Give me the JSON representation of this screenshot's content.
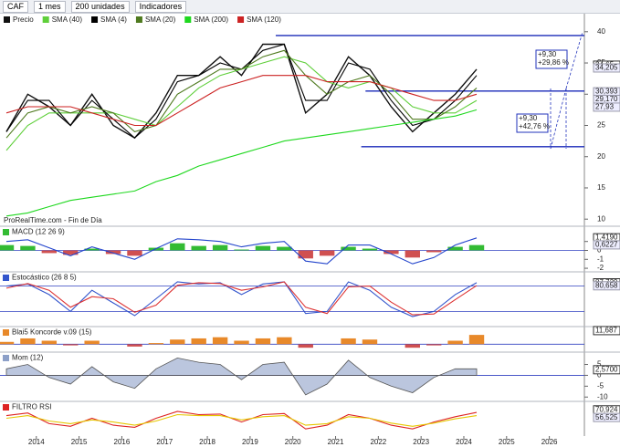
{
  "toolbar": {
    "symbol": "CAF",
    "period": "1 mes",
    "units": "200 unidades",
    "indicators": "Indicadores"
  },
  "source": "ProRealTime.com - Fin de Día",
  "chart_data": [
    {
      "type": "line",
      "x": [
        2013.3,
        2013.8,
        2014.3,
        2014.8,
        2015.3,
        2015.8,
        2016.3,
        2016.8,
        2017.3,
        2017.8,
        2018.3,
        2018.8,
        2019.3,
        2019.8,
        2020.3,
        2020.8,
        2021.3,
        2021.8,
        2022.3,
        2022.8,
        2023.3,
        2023.8,
        2024.3
      ],
      "xlim": [
        2013.15,
        2026.82
      ],
      "xticks": [
        2014,
        2015,
        2016,
        2017,
        2018,
        2019,
        2020,
        2021,
        2022,
        2023,
        2024,
        2025,
        2026
      ],
      "ylim": [
        9.3,
        42.6
      ],
      "yticks": [
        10,
        15,
        20,
        25,
        30,
        35,
        40
      ],
      "series": [
        {
          "name": "Precio",
          "color": "#111111",
          "values": [
            24,
            30,
            28,
            25,
            30,
            25,
            23,
            27,
            33,
            33,
            36,
            33,
            38,
            38,
            27,
            30,
            36,
            33,
            28,
            24,
            27,
            30,
            34
          ]
        },
        {
          "name": "SMA (40)",
          "color": "#5fcf3a",
          "values": [
            21,
            25,
            27,
            27,
            27,
            27,
            26,
            25,
            28,
            31,
            33,
            34,
            35,
            36,
            35,
            32,
            31,
            32,
            31,
            28,
            27,
            27,
            29
          ]
        },
        {
          "name": "SMA (4)",
          "color": "#000000",
          "values": [
            24,
            29,
            29,
            25,
            29,
            26,
            23,
            26,
            32,
            33,
            35,
            34,
            37,
            38,
            29,
            29,
            35,
            34,
            29,
            25,
            26,
            29,
            33
          ]
        },
        {
          "name": "SMA (20)",
          "color": "#4f7a1f",
          "values": [
            23,
            27,
            28,
            27,
            28,
            27,
            24,
            25,
            30,
            32,
            34,
            34,
            36,
            37,
            33,
            30,
            32,
            33,
            30,
            26,
            26,
            28,
            31
          ]
        },
        {
          "name": "SMA (200)",
          "color": "#1ed81e",
          "values": [
            10.5,
            11,
            12,
            13,
            13.5,
            14,
            14.5,
            16,
            17,
            18.5,
            19.5,
            20.5,
            21.5,
            22.5,
            23,
            23.5,
            24,
            24.5,
            25,
            25.5,
            26,
            26.5,
            27.5
          ]
        },
        {
          "name": "SMA (120)",
          "color": "#cc2222",
          "values": [
            27,
            28,
            28,
            28,
            27,
            26,
            25,
            25,
            27,
            29,
            31,
            32,
            33,
            33,
            33,
            32,
            32,
            32,
            31,
            30,
            29,
            29,
            30
          ]
        }
      ],
      "levels": [
        {
          "value": 39.4,
          "from": 2019.6
        },
        {
          "value": 30.5,
          "from": 2021.7
        },
        {
          "value": 21.6,
          "from": 2021.6
        }
      ],
      "annotations": [
        "+9,30",
        "+29,86 %",
        "+9,30",
        "+42,76 %"
      ],
      "right_labels": [
        {
          "value": 34.65,
          "label": "34,65"
        },
        {
          "value": 34.205,
          "label": "34,205"
        },
        {
          "value": 30.393,
          "label": "30,393"
        },
        {
          "value": 29.17,
          "label": "29,170"
        },
        {
          "value": 27.93,
          "label": "27,93"
        }
      ]
    },
    {
      "type": "bar",
      "title": "MACD (12 26 9)",
      "x": [
        2013.3,
        2013.8,
        2014.3,
        2014.8,
        2015.3,
        2015.8,
        2016.3,
        2016.8,
        2017.3,
        2017.8,
        2018.3,
        2018.8,
        2019.3,
        2019.8,
        2020.3,
        2020.8,
        2021.3,
        2021.8,
        2022.3,
        2022.8,
        2023.3,
        2023.8,
        2024.3
      ],
      "ylim": [
        -2.3,
        2.3
      ],
      "yticks": [
        -2,
        -1,
        0,
        1
      ],
      "ref_lines": [
        0
      ],
      "series": [
        {
          "type": "bar",
          "color": "#33bb33",
          "values": [
            0.6,
            0.5,
            -0.3,
            -0.5,
            0.2,
            -0.4,
            -0.6,
            0.3,
            0.8,
            0.5,
            0.6,
            0.1,
            0.5,
            0.4,
            -0.9,
            -0.6,
            0.4,
            0.2,
            -0.4,
            -0.8,
            -0.2,
            0.4,
            0.6
          ]
        },
        {
          "type": "line",
          "color": "#2244cc",
          "values": [
            1.0,
            1.2,
            0.3,
            -0.6,
            0.4,
            -0.3,
            -1.0,
            0.2,
            1.3,
            1.2,
            1.0,
            0.4,
            0.8,
            1.0,
            -1.2,
            -1.5,
            0.6,
            0.6,
            -0.4,
            -1.5,
            -0.8,
            0.6,
            1.4
          ]
        }
      ],
      "right_labels": [
        {
          "value": 1.419,
          "label": "1,4190"
        },
        {
          "value": 0.6227,
          "label": "0,6227"
        }
      ]
    },
    {
      "type": "line",
      "title": "Estocástico (26 8 5)",
      "x": [
        2013.3,
        2013.8,
        2014.3,
        2014.8,
        2015.3,
        2015.8,
        2016.3,
        2016.8,
        2017.3,
        2017.8,
        2018.3,
        2018.8,
        2019.3,
        2019.8,
        2020.3,
        2020.8,
        2021.3,
        2021.8,
        2022.3,
        2022.8,
        2023.3,
        2023.8,
        2024.3
      ],
      "ylim": [
        -5,
        105
      ],
      "ref_lines": [
        20,
        80
      ],
      "series": [
        {
          "type": "line",
          "color": "#3355cc",
          "values": [
            80,
            85,
            60,
            20,
            70,
            40,
            10,
            50,
            90,
            85,
            88,
            60,
            85,
            90,
            15,
            20,
            90,
            70,
            30,
            8,
            20,
            60,
            88
          ]
        },
        {
          "type": "line",
          "color": "#dd3333",
          "values": [
            75,
            86,
            70,
            30,
            55,
            50,
            18,
            35,
            82,
            88,
            86,
            70,
            78,
            90,
            30,
            15,
            78,
            80,
            42,
            12,
            14,
            48,
            81
          ]
        }
      ],
      "right_labels": [
        {
          "value": 87.729,
          "label": "87,729"
        },
        {
          "value": 80.658,
          "label": "80,658"
        }
      ]
    },
    {
      "type": "bar",
      "title": "Blai5 Koncorde v.09 (15)",
      "x": [
        2013.3,
        2013.8,
        2014.3,
        2014.8,
        2015.3,
        2015.8,
        2016.3,
        2016.8,
        2017.3,
        2017.8,
        2018.3,
        2018.8,
        2019.3,
        2019.8,
        2020.3,
        2020.8,
        2021.3,
        2021.8,
        2022.3,
        2022.8,
        2023.3,
        2023.8,
        2024.3
      ],
      "ylim": [
        -6,
        12
      ],
      "ref_lines": [
        0
      ],
      "series": [
        {
          "type": "bar",
          "color": "#e8892a",
          "values": [
            2,
            5,
            3,
            -1,
            3,
            0,
            -2,
            1,
            4,
            5,
            6,
            3,
            5,
            6,
            -3,
            0,
            5,
            4,
            0,
            -3,
            -1,
            3,
            8
          ]
        }
      ],
      "right_labels": [
        {
          "value": 11.687,
          "label": "11,687"
        }
      ]
    },
    {
      "type": "area",
      "title": "Mom (12)",
      "x": [
        2013.3,
        2013.8,
        2014.3,
        2014.8,
        2015.3,
        2015.8,
        2016.3,
        2016.8,
        2017.3,
        2017.8,
        2018.3,
        2018.8,
        2019.3,
        2019.8,
        2020.3,
        2020.8,
        2021.3,
        2021.8,
        2022.3,
        2022.8,
        2023.3,
        2023.8,
        2024.3
      ],
      "ylim": [
        -12,
        9
      ],
      "yticks": [
        -10,
        -5,
        0,
        5
      ],
      "ref_lines": [
        0
      ],
      "series": [
        {
          "type": "area",
          "color": "#8da0c8",
          "values": [
            3,
            5,
            -1,
            -4,
            4,
            -3,
            -6,
            3,
            8,
            6,
            5,
            -2,
            5,
            6,
            -9,
            -4,
            7,
            -1,
            -5,
            -8,
            -1,
            3,
            3
          ]
        }
      ],
      "right_labels": [
        {
          "value": 2.57,
          "label": "2,5700"
        }
      ]
    },
    {
      "type": "line",
      "title": "FILTRO RSI",
      "x": [
        2013.3,
        2013.8,
        2014.3,
        2014.8,
        2015.3,
        2015.8,
        2016.3,
        2016.8,
        2017.3,
        2017.8,
        2018.3,
        2018.8,
        2019.3,
        2019.8,
        2020.3,
        2020.8,
        2021.3,
        2021.8,
        2022.3,
        2022.8,
        2023.3,
        2023.8,
        2024.3
      ],
      "ylim": [
        25,
        80
      ],
      "series": [
        {
          "type": "line",
          "color": "#dd2222",
          "values": [
            60,
            65,
            45,
            40,
            55,
            42,
            38,
            55,
            68,
            62,
            63,
            48,
            62,
            64,
            35,
            42,
            62,
            55,
            42,
            35,
            48,
            58,
            66
          ]
        },
        {
          "type": "line",
          "color": "#e6c700",
          "values": [
            55,
            60,
            50,
            45,
            52,
            48,
            42,
            50,
            62,
            60,
            60,
            52,
            58,
            60,
            42,
            45,
            58,
            55,
            46,
            40,
            46,
            54,
            60
          ]
        }
      ],
      "right_labels": [
        {
          "value": 70.924,
          "label": "70,924"
        },
        {
          "value": 56.525,
          "label": "56,525"
        }
      ]
    }
  ]
}
